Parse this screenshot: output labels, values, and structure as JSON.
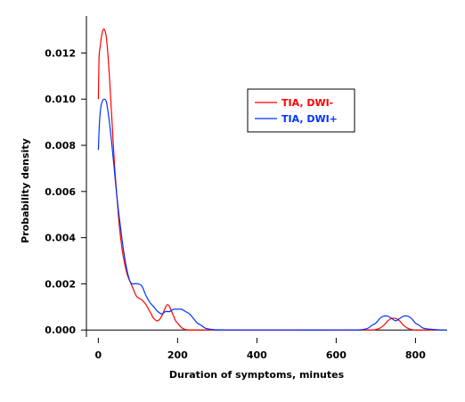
{
  "chart_data": {
    "type": "line",
    "xlabel": "Duration of symptoms, minutes",
    "ylabel": "Probability density",
    "xlim": [
      -30,
      880
    ],
    "ylim": [
      -0.0003,
      0.0136
    ],
    "x_ticks": [
      0,
      200,
      400,
      600,
      800
    ],
    "x_tick_labels": [
      "0",
      "200",
      "400",
      "600",
      "800"
    ],
    "y_ticks": [
      0,
      0.002,
      0.004,
      0.006,
      0.008,
      0.01,
      0.012
    ],
    "y_tick_labels": [
      "0.000",
      "0.002",
      "0.004",
      "0.006",
      "0.008",
      "0.010",
      "0.012"
    ],
    "zero_line": true,
    "grid": false,
    "legend_position": "upper-right",
    "series": [
      {
        "name": "TIA, DWI-",
        "color": "#ff0000",
        "x": [
          0,
          2,
          5,
          8,
          12,
          16,
          20,
          24,
          28,
          32,
          36,
          40,
          45,
          50,
          55,
          60,
          65,
          70,
          75,
          80,
          85,
          90,
          95,
          100,
          110,
          120,
          130,
          140,
          150,
          160,
          170,
          175,
          180,
          185,
          190,
          195,
          200,
          210,
          220,
          230,
          240,
          260,
          280,
          300,
          400,
          500,
          600,
          680,
          700,
          710,
          720,
          730,
          740,
          750,
          760,
          770,
          780,
          790,
          800,
          820,
          860
        ],
        "y": [
          0.01,
          0.0118,
          0.0123,
          0.0127,
          0.013,
          0.013,
          0.0127,
          0.012,
          0.011,
          0.0098,
          0.0086,
          0.0074,
          0.0062,
          0.0051,
          0.0042,
          0.0035,
          0.003,
          0.0026,
          0.0023,
          0.0021,
          0.0019,
          0.0017,
          0.0015,
          0.0014,
          0.0013,
          0.0011,
          0.0008,
          0.0005,
          0.0004,
          0.0006,
          0.001,
          0.0011,
          0.001,
          0.0008,
          0.0006,
          0.0004,
          0.0003,
          0.0001,
          2e-05,
          0.0,
          0.0,
          0.0,
          0.0,
          0.0,
          0.0,
          0.0,
          0.0,
          0.0,
          2e-05,
          8e-05,
          0.0002,
          0.0004,
          0.0005,
          0.0005,
          0.0004,
          0.0002,
          8e-05,
          2e-05,
          0.0,
          0.0,
          0.0
        ]
      },
      {
        "name": "TIA, DWI+",
        "color": "#0033ff",
        "x": [
          0,
          3,
          6,
          10,
          15,
          20,
          25,
          30,
          35,
          40,
          45,
          50,
          55,
          60,
          65,
          70,
          75,
          80,
          85,
          90,
          95,
          100,
          110,
          120,
          130,
          140,
          150,
          160,
          170,
          180,
          190,
          200,
          210,
          220,
          230,
          240,
          250,
          260,
          270,
          280,
          290,
          300,
          400,
          500,
          600,
          660,
          680,
          690,
          700,
          710,
          720,
          730,
          740,
          750,
          760,
          770,
          780,
          790,
          800,
          810,
          820,
          840,
          860,
          875
        ],
        "y": [
          0.0078,
          0.009,
          0.0096,
          0.0099,
          0.01,
          0.0099,
          0.0094,
          0.0087,
          0.0079,
          0.007,
          0.0061,
          0.0053,
          0.0046,
          0.0039,
          0.0033,
          0.0028,
          0.0024,
          0.0021,
          0.002,
          0.002,
          0.002,
          0.002,
          0.0019,
          0.0015,
          0.0012,
          0.001,
          0.0008,
          0.0007,
          0.0008,
          0.0008,
          0.0009,
          0.0009,
          0.0009,
          0.0008,
          0.0007,
          0.0005,
          0.0003,
          0.0002,
          8e-05,
          4e-05,
          2e-05,
          1e-05,
          0.0,
          0.0,
          0.0,
          1e-05,
          8e-05,
          0.0002,
          0.0003,
          0.0005,
          0.0006,
          0.0006,
          0.0005,
          0.0004,
          0.0005,
          0.0006,
          0.0006,
          0.0005,
          0.0003,
          0.0002,
          8e-05,
          3e-05,
          1e-05,
          0.0
        ]
      }
    ]
  }
}
